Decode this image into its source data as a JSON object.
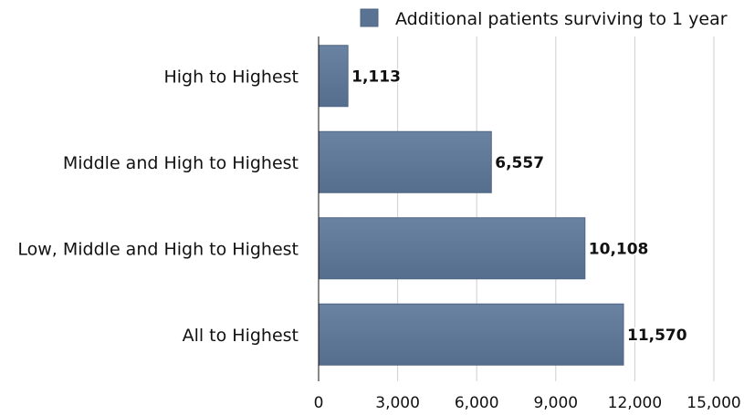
{
  "chart_data": {
    "type": "bar",
    "orientation": "horizontal",
    "categories": [
      "High to Highest",
      "Middle and High to Highest",
      "Low, Middle and High to Highest",
      "All to Highest"
    ],
    "series": [
      {
        "name": "Additional patients surviving to 1 year",
        "values": [
          1113,
          6557,
          10108,
          11570
        ],
        "labels": [
          "1,113",
          "6,557",
          "10,108",
          "11,570"
        ],
        "color": "#5b7393"
      }
    ],
    "xlim": [
      0,
      15000
    ],
    "xticks": [
      0,
      3000,
      6000,
      9000,
      12000,
      15000
    ],
    "xtick_labels": [
      "0",
      "3,000",
      "6,000",
      "9,000",
      "12,000",
      "15,000"
    ],
    "grid": true,
    "legend_position": "top-right",
    "title": "",
    "xlabel": "",
    "ylabel": ""
  }
}
